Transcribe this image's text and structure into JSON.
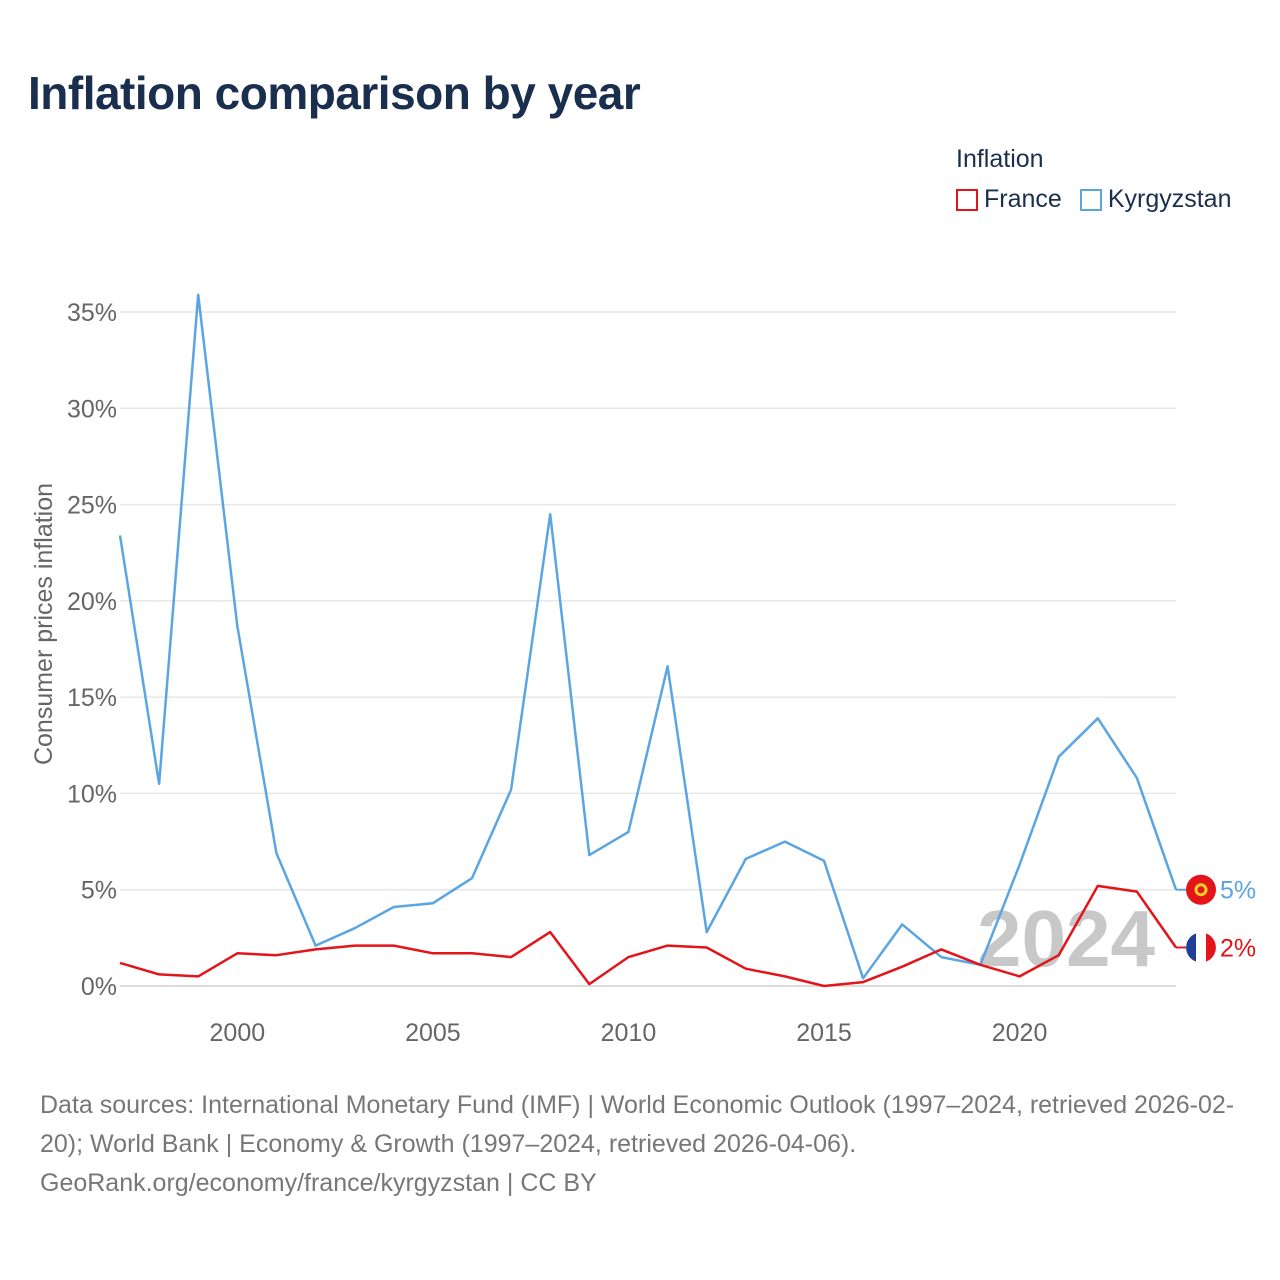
{
  "title": "Inflation comparison by year",
  "legend": {
    "title": "Inflation",
    "items": [
      {
        "label": "France",
        "color": "#e3141a"
      },
      {
        "label": "Kyrgyzstan",
        "color": "#5aa5e2"
      }
    ]
  },
  "source": {
    "line1": "Data sources: International Monetary Fund (IMF) | World Economic Outlook (1997–2024, retrieved 2026-02-20); World Bank | Economy & Growth (1997–2024, retrieved 2026-04-06).",
    "line2": "GeoRank.org/economy/france/kyrgyzstan | CC BY"
  },
  "chart_data": {
    "type": "line",
    "title": "Inflation comparison by year",
    "xlabel": "",
    "ylabel": "Consumer prices inflation",
    "xlim": [
      1997,
      2024
    ],
    "ylim": [
      0,
      35
    ],
    "x_ticks": [
      2000,
      2005,
      2010,
      2015,
      2020
    ],
    "y_ticks": [
      0,
      5,
      10,
      15,
      20,
      25,
      30,
      35
    ],
    "y_tick_labels": [
      "0%",
      "5%",
      "10%",
      "15%",
      "20%",
      "25%",
      "30%",
      "35%"
    ],
    "grid": true,
    "watermark_year": "2024",
    "x": [
      1997,
      1998,
      1999,
      2000,
      2001,
      2002,
      2003,
      2004,
      2005,
      2006,
      2007,
      2008,
      2009,
      2010,
      2011,
      2012,
      2013,
      2014,
      2015,
      2016,
      2017,
      2018,
      2019,
      2020,
      2021,
      2022,
      2023,
      2024
    ],
    "series": [
      {
        "name": "Kyrgyzstan",
        "color": "#5aa5e2",
        "end_label": "5%",
        "values": [
          23.4,
          10.5,
          35.9,
          18.7,
          6.9,
          2.1,
          3.0,
          4.1,
          4.3,
          5.6,
          10.2,
          24.5,
          6.8,
          8.0,
          16.6,
          2.8,
          6.6,
          7.5,
          6.5,
          0.4,
          3.2,
          1.5,
          1.1,
          6.3,
          11.9,
          13.9,
          10.8,
          5.0
        ]
      },
      {
        "name": "France",
        "color": "#e3141a",
        "end_label": "2%",
        "values": [
          1.2,
          0.6,
          0.5,
          1.7,
          1.6,
          1.9,
          2.1,
          2.1,
          1.7,
          1.7,
          1.5,
          2.8,
          0.1,
          1.5,
          2.1,
          2.0,
          0.9,
          0.5,
          0.0,
          0.2,
          1.0,
          1.9,
          1.1,
          0.5,
          1.6,
          5.2,
          4.9,
          2.0
        ]
      }
    ]
  }
}
